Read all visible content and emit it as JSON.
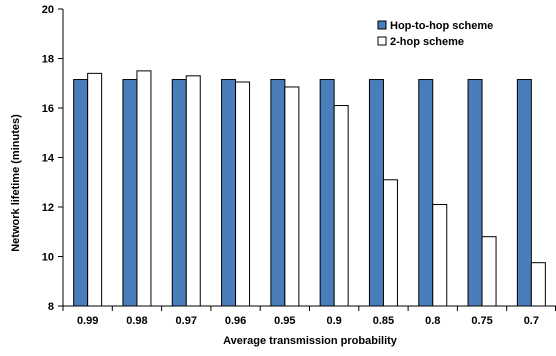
{
  "chart_data": {
    "type": "bar",
    "title": "",
    "xlabel": "Average transmission probability",
    "ylabel": "Network lifetime (minutes)",
    "ylim": [
      8,
      20
    ],
    "yticks": [
      8,
      10,
      12,
      14,
      16,
      18,
      20
    ],
    "grid": false,
    "legend_position": "top-right",
    "categories": [
      "0.99",
      "0.98",
      "0.97",
      "0.96",
      "0.95",
      "0.9",
      "0.85",
      "0.8",
      "0.75",
      "0.7"
    ],
    "series": [
      {
        "name": "Hop-to-hop scheme",
        "color": "#4a7ebb",
        "values": [
          17.15,
          17.15,
          17.15,
          17.15,
          17.15,
          17.15,
          17.15,
          17.15,
          17.15,
          17.15
        ]
      },
      {
        "name": "2-hop scheme",
        "color": "#ffffff",
        "values": [
          17.4,
          17.5,
          17.3,
          17.05,
          16.85,
          16.1,
          13.1,
          12.1,
          10.8,
          9.75
        ]
      }
    ]
  }
}
